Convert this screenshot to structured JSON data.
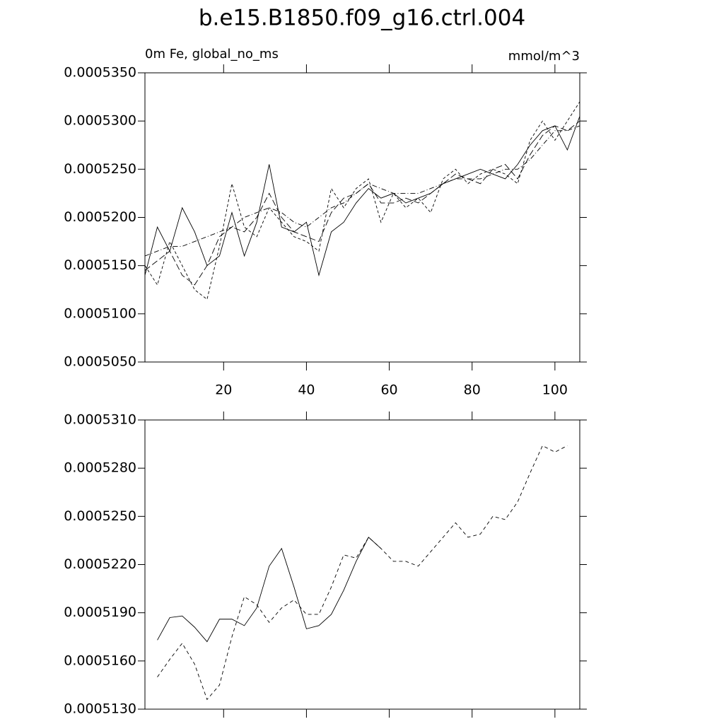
{
  "chart_data": [
    {
      "type": "line",
      "title": "b.e15.B1850.f09_g16.ctrl.004",
      "subtitle_left": "0m Fe, global_no_ms",
      "subtitle_right": "mmol/m^3",
      "x": [
        1,
        4,
        7,
        10,
        13,
        16,
        19,
        22,
        25,
        28,
        31,
        34,
        37,
        40,
        43,
        46,
        49,
        52,
        55,
        58,
        61,
        64,
        67,
        70,
        73,
        76,
        79,
        82,
        85,
        88,
        91,
        94,
        97,
        100,
        103,
        106
      ],
      "series": [
        {
          "color": "#000000",
          "dash": "none",
          "values": [
            0.000514,
            0.000519,
            0.0005165,
            0.000521,
            0.0005185,
            0.000515,
            0.000516,
            0.0005205,
            0.000516,
            0.0005195,
            0.0005255,
            0.000519,
            0.0005185,
            0.0005195,
            0.000514,
            0.0005185,
            0.0005195,
            0.0005215,
            0.000523,
            0.000522,
            0.0005225,
            0.0005215,
            0.000522,
            0.0005225,
            0.0005235,
            0.000524,
            0.0005245,
            0.000525,
            0.0005245,
            0.000524,
            0.0005255,
            0.0005275,
            0.000529,
            0.0005295,
            0.000527,
            0.0005305
          ]
        },
        {
          "color": "#000000",
          "dash": "4,3",
          "values": [
            0.000515,
            0.000513,
            0.0005175,
            0.000515,
            0.0005125,
            0.0005115,
            0.000517,
            0.0005235,
            0.000519,
            0.000518,
            0.000521,
            0.0005195,
            0.000518,
            0.0005175,
            0.0005165,
            0.000523,
            0.000521,
            0.000523,
            0.000524,
            0.0005195,
            0.0005225,
            0.000521,
            0.000522,
            0.0005205,
            0.000524,
            0.000525,
            0.0005235,
            0.0005245,
            0.000525,
            0.0005245,
            0.0005235,
            0.000528,
            0.00053,
            0.000528,
            0.00053,
            0.000532
          ]
        },
        {
          "color": "#000000",
          "dash": "7,3,1,3",
          "values": [
            0.000516,
            0.0005165,
            0.000517,
            0.000517,
            0.0005175,
            0.000518,
            0.0005185,
            0.000519,
            0.00052,
            0.0005205,
            0.000521,
            0.0005205,
            0.0005195,
            0.000519,
            0.00052,
            0.000521,
            0.0005215,
            0.0005225,
            0.0005235,
            0.000523,
            0.0005225,
            0.0005225,
            0.0005225,
            0.000523,
            0.0005235,
            0.000524,
            0.000524,
            0.000524,
            0.0005245,
            0.000525,
            0.000525,
            0.000526,
            0.0005275,
            0.000529,
            0.000529,
            0.0005295
          ]
        },
        {
          "color": "#000000",
          "dash": "9,4",
          "values": [
            0.0005145,
            0.0005155,
            0.0005165,
            0.000514,
            0.000513,
            0.000515,
            0.000518,
            0.000519,
            0.0005185,
            0.00052,
            0.0005225,
            0.00052,
            0.0005185,
            0.000518,
            0.0005175,
            0.0005205,
            0.000522,
            0.0005225,
            0.0005235,
            0.0005215,
            0.0005215,
            0.000522,
            0.0005215,
            0.0005225,
            0.0005235,
            0.0005245,
            0.000524,
            0.0005235,
            0.000525,
            0.0005255,
            0.000524,
            0.0005265,
            0.0005285,
            0.0005295,
            0.000529,
            0.00053
          ]
        }
      ],
      "xlim": [
        1,
        106
      ],
      "xticks": [
        20,
        40,
        60,
        80,
        100
      ],
      "xtick_labels": true,
      "ylim": [
        0.000505,
        0.000535
      ],
      "yticks": [
        {
          "value": 0.000505,
          "label": "0.0005050"
        },
        {
          "value": 0.00051,
          "label": "0.0005100"
        },
        {
          "value": 0.000515,
          "label": "0.0005150"
        },
        {
          "value": 0.00052,
          "label": "0.0005200"
        },
        {
          "value": 0.000525,
          "label": "0.0005250"
        },
        {
          "value": 0.00053,
          "label": "0.0005300"
        },
        {
          "value": 0.000535,
          "label": "0.0005350"
        }
      ]
    },
    {
      "type": "line",
      "x": [
        4,
        7,
        10,
        13,
        16,
        19,
        22,
        25,
        28,
        31,
        34,
        37,
        40,
        43,
        46,
        49,
        52,
        55,
        58,
        61,
        64,
        67,
        70,
        73,
        76,
        79,
        82,
        85,
        88,
        91,
        94,
        97,
        100,
        103
      ],
      "series": [
        {
          "color": "#000000",
          "dash": "none",
          "values": [
            0.0005173,
            0.0005187,
            0.0005188,
            0.0005181,
            0.0005172,
            0.0005186,
            0.0005186,
            0.0005182,
            0.0005193,
            0.0005219,
            0.000523,
            0.0005206,
            0.000518,
            0.0005182,
            0.0005189,
            0.0005204,
            0.0005222,
            0.0005237,
            0.000523,
            null,
            null,
            null,
            null,
            null,
            null,
            null,
            null,
            null,
            null,
            null,
            null,
            null,
            null,
            null
          ]
        },
        {
          "color": "#000000",
          "dash": "5,4",
          "values": [
            0.000515,
            0.0005161,
            0.0005171,
            0.0005158,
            0.0005136,
            0.0005145,
            0.0005175,
            0.00052,
            0.0005195,
            0.0005184,
            0.0005193,
            0.0005198,
            0.0005189,
            0.0005189,
            0.0005206,
            0.0005226,
            0.0005224,
            0.0005237,
            0.000523,
            0.0005222,
            0.0005222,
            0.0005219,
            0.0005228,
            0.0005237,
            0.0005246,
            0.0005237,
            0.0005239,
            0.000525,
            0.0005248,
            0.0005259,
            0.0005277,
            0.0005294,
            0.000529,
            0.0005294
          ]
        }
      ],
      "xlim": [
        1,
        106
      ],
      "xticks": [
        20,
        40,
        60,
        80,
        100
      ],
      "xtick_labels": false,
      "ylim": [
        0.000513,
        0.000531
      ],
      "yticks": [
        {
          "value": 0.000513,
          "label": "0.0005130"
        },
        {
          "value": 0.000516,
          "label": "0.0005160"
        },
        {
          "value": 0.000519,
          "label": "0.0005190"
        },
        {
          "value": 0.000522,
          "label": "0.0005220"
        },
        {
          "value": 0.000525,
          "label": "0.0005250"
        },
        {
          "value": 0.000528,
          "label": "0.0005280"
        },
        {
          "value": 0.000531,
          "label": "0.0005310"
        }
      ]
    }
  ]
}
